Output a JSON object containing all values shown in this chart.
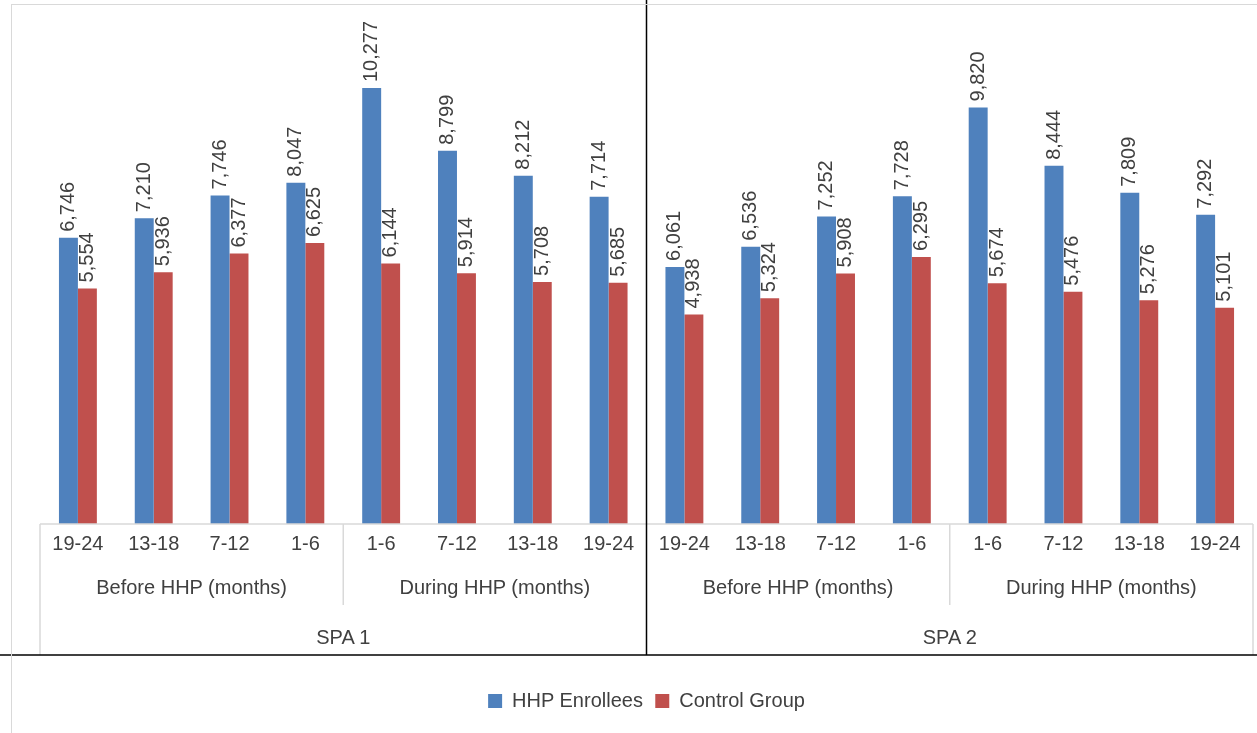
{
  "chart_data": {
    "type": "bar",
    "categories": [
      "19-24",
      "13-18",
      "7-12",
      "1-6",
      "1-6",
      "7-12",
      "13-18",
      "19-24",
      "19-24",
      "13-18",
      "7-12",
      "1-6",
      "1-6",
      "7-12",
      "13-18",
      "19-24"
    ],
    "annotations": [
      "Before HHP (months)",
      "During HHP (months)",
      "Before HHP (months)",
      "During HHP (months)",
      "SPA 1",
      "SPA 2"
    ],
    "series": [
      {
        "name": "HHP Enrollees",
        "color": "#4f81bd",
        "values": [
          6746,
          7210,
          7746,
          8047,
          10277,
          8799,
          8212,
          7714,
          6061,
          6536,
          7252,
          7728,
          9820,
          8444,
          7809,
          7292
        ],
        "value_labels": [
          "6,746",
          "7,210",
          "7,746",
          "8,047",
          "10,277",
          "8,799",
          "8,212",
          "7,714",
          "6,061",
          "6,536",
          "7,252",
          "7,728",
          "9,820",
          "8,444",
          "7,809",
          "7,292"
        ]
      },
      {
        "name": "Control Group",
        "color": "#c0504d",
        "values": [
          5554,
          5936,
          6377,
          6625,
          6144,
          5914,
          5708,
          5685,
          4938,
          5324,
          5908,
          6295,
          5674,
          5476,
          5276,
          5101
        ],
        "value_labels": [
          "5,554",
          "5,936",
          "6,377",
          "6,625",
          "6,144",
          "5,914",
          "5,708",
          "5,685",
          "4,938",
          "5,324",
          "5,908",
          "6,295",
          "5,674",
          "5,476",
          "5,276",
          "5,101"
        ]
      }
    ],
    "legend": "bottom"
  }
}
